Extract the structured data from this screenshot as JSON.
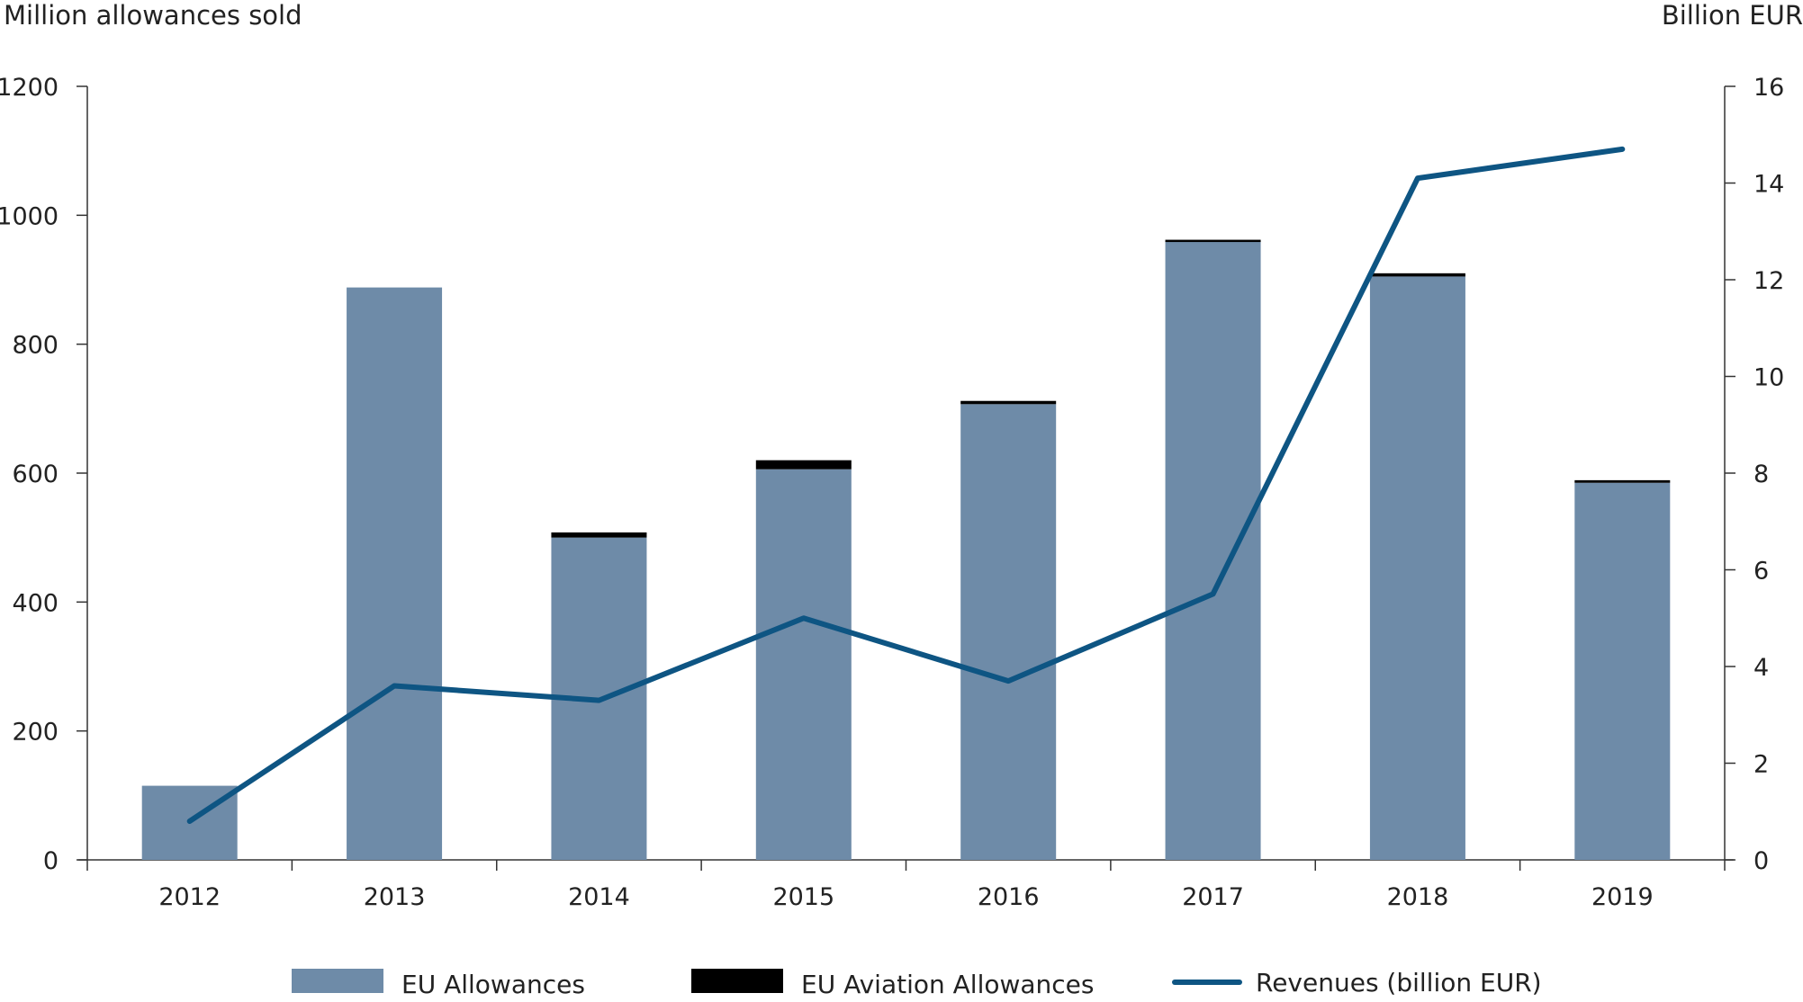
{
  "chart_data": {
    "type": "bar",
    "ylabel_left": "Million allowances sold",
    "ylabel_right": "Billion EUR",
    "categories": [
      "2012",
      "2013",
      "2014",
      "2015",
      "2016",
      "2017",
      "2018",
      "2019"
    ],
    "y_left": {
      "ticks": [
        "0",
        "200",
        "400",
        "600",
        "800",
        "1000",
        "1200"
      ],
      "range": [
        0,
        1200
      ]
    },
    "y_right": {
      "ticks": [
        "0",
        "2",
        "4",
        "6",
        "8",
        "10",
        "12",
        "14",
        "16"
      ],
      "range": [
        0,
        16
      ]
    },
    "series": [
      {
        "name": "EU Allowances",
        "type": "bar",
        "axis": "left",
        "color": "#6e8ba8",
        "values": [
          115,
          888,
          500,
          606,
          707,
          960,
          905,
          585
        ]
      },
      {
        "name": "EU Aviation Allowances",
        "type": "bar",
        "stacked": true,
        "axis": "left",
        "color": "#000000",
        "values": [
          0,
          0,
          8,
          14,
          5,
          2,
          5,
          4
        ]
      },
      {
        "name": "Revenues (billion EUR)",
        "type": "line",
        "axis": "right",
        "color": "#0e5583",
        "values": [
          0.8,
          3.6,
          3.3,
          5.0,
          3.7,
          5.5,
          14.1,
          14.7
        ]
      }
    ],
    "grid": false,
    "legend_position": "bottom"
  }
}
